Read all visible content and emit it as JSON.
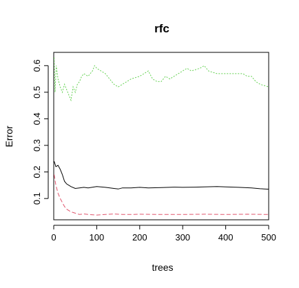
{
  "chart_data": {
    "type": "line",
    "title": "rfc",
    "xlabel": "trees",
    "ylabel": "Error",
    "xlim": [
      0,
      500
    ],
    "ylim": [
      0.02,
      0.65
    ],
    "xticks": [
      0,
      100,
      200,
      300,
      400,
      500
    ],
    "yticks": [
      0.1,
      0.2,
      0.3,
      0.4,
      0.5,
      0.6
    ],
    "grid": false,
    "legend": "none",
    "series": [
      {
        "color": "#000000",
        "line_style": "solid",
        "x": [
          1,
          5,
          10,
          15,
          20,
          25,
          30,
          40,
          50,
          60,
          70,
          80,
          100,
          120,
          140,
          150,
          160,
          180,
          200,
          220,
          250,
          280,
          300,
          330,
          350,
          380,
          400,
          430,
          460,
          480,
          500
        ],
        "y": [
          0.24,
          0.22,
          0.225,
          0.21,
          0.19,
          0.165,
          0.155,
          0.145,
          0.138,
          0.14,
          0.142,
          0.14,
          0.145,
          0.142,
          0.138,
          0.136,
          0.14,
          0.14,
          0.142,
          0.14,
          0.141,
          0.143,
          0.142,
          0.143,
          0.144,
          0.145,
          0.144,
          0.142,
          0.14,
          0.137,
          0.135
        ]
      },
      {
        "color": "#DF536B",
        "line_style": "dashed",
        "x": [
          1,
          5,
          10,
          15,
          20,
          25,
          30,
          40,
          50,
          60,
          70,
          80,
          100,
          120,
          140,
          160,
          180,
          200,
          250,
          300,
          350,
          400,
          450,
          500
        ],
        "y": [
          0.19,
          0.15,
          0.12,
          0.1,
          0.085,
          0.07,
          0.06,
          0.05,
          0.045,
          0.04,
          0.042,
          0.04,
          0.038,
          0.04,
          0.042,
          0.04,
          0.04,
          0.041,
          0.04,
          0.04,
          0.041,
          0.04,
          0.041,
          0.04
        ]
      },
      {
        "color": "#61D04F",
        "line_style": "dotted",
        "x": [
          1,
          3,
          6,
          10,
          15,
          20,
          25,
          30,
          35,
          40,
          45,
          50,
          55,
          60,
          65,
          70,
          80,
          90,
          95,
          100,
          110,
          120,
          130,
          140,
          150,
          160,
          170,
          180,
          200,
          210,
          220,
          230,
          240,
          250,
          260,
          270,
          280,
          300,
          310,
          320,
          340,
          350,
          360,
          380,
          400,
          420,
          440,
          450,
          460,
          470,
          480,
          500
        ],
        "y": [
          0.63,
          0.5,
          0.6,
          0.55,
          0.52,
          0.5,
          0.53,
          0.51,
          0.49,
          0.47,
          0.52,
          0.5,
          0.53,
          0.54,
          0.56,
          0.57,
          0.56,
          0.58,
          0.6,
          0.59,
          0.58,
          0.57,
          0.55,
          0.53,
          0.52,
          0.53,
          0.54,
          0.55,
          0.56,
          0.57,
          0.58,
          0.55,
          0.54,
          0.54,
          0.56,
          0.55,
          0.56,
          0.58,
          0.59,
          0.58,
          0.59,
          0.6,
          0.58,
          0.57,
          0.57,
          0.57,
          0.57,
          0.56,
          0.56,
          0.54,
          0.53,
          0.52
        ]
      }
    ]
  }
}
